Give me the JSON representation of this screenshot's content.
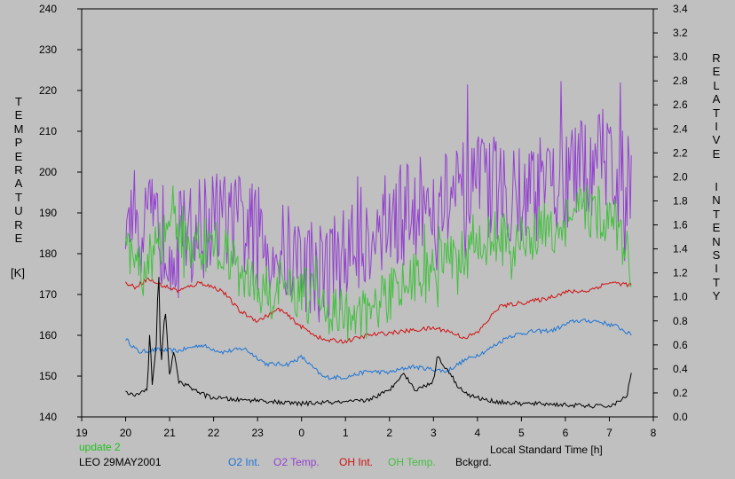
{
  "chart_data": {
    "type": "line",
    "xlabel": "Local Standard Time [h]",
    "x_tick_labels": [
      "19",
      "20",
      "21",
      "22",
      "23",
      "0",
      "1",
      "2",
      "3",
      "4",
      "5",
      "6",
      "7",
      "8"
    ],
    "xlim": [
      19,
      32
    ],
    "left_axis": {
      "label_letters": [
        "T",
        "E",
        "M",
        "P",
        "E",
        "R",
        "A",
        "T",
        "U",
        "R",
        "E"
      ],
      "unit": "[K]",
      "ylim": [
        140,
        240
      ],
      "tick_labels": [
        "140",
        "150",
        "160",
        "170",
        "180",
        "190",
        "200",
        "210",
        "220",
        "230",
        "240"
      ]
    },
    "right_axis": {
      "label_word1": [
        "R",
        "E",
        "L",
        "A",
        "T",
        "I",
        "V",
        "E"
      ],
      "label_word2": [
        "I",
        "N",
        "T",
        "E",
        "N",
        "S",
        "I",
        "T",
        "Y"
      ],
      "ylim": [
        0.0,
        3.4
      ],
      "tick_labels": [
        "0.0",
        "0.2",
        "0.4",
        "0.6",
        "0.8",
        "1.0",
        "1.2",
        "1.4",
        "1.6",
        "1.8",
        "2.0",
        "2.2",
        "2.4",
        "2.6",
        "2.8",
        "3.0",
        "3.2",
        "3.4"
      ]
    },
    "series": [
      {
        "name": "O2 Int.",
        "axis": "right",
        "color": "#1c74d6",
        "x": [
          20.0,
          20.3,
          20.7,
          21.2,
          21.7,
          22.2,
          22.7,
          23.2,
          23.7,
          24.0,
          24.5,
          25.0,
          25.5,
          26.0,
          26.5,
          26.9,
          27.3,
          27.7,
          28.2,
          28.7,
          29.2,
          29.7,
          30.2,
          30.7,
          31.2,
          31.5
        ],
        "y": [
          0.65,
          0.54,
          0.56,
          0.55,
          0.6,
          0.54,
          0.57,
          0.44,
          0.44,
          0.5,
          0.33,
          0.33,
          0.38,
          0.37,
          0.42,
          0.4,
          0.38,
          0.47,
          0.55,
          0.67,
          0.71,
          0.72,
          0.8,
          0.8,
          0.75,
          0.68
        ]
      },
      {
        "name": "O2 Temp.",
        "axis": "left",
        "color": "#9440d0",
        "x": [
          20.0,
          20.4,
          20.8,
          21.2,
          21.6,
          22.0,
          22.4,
          22.8,
          23.2,
          23.6,
          24.0,
          24.4,
          24.8,
          25.2,
          25.6,
          26.0,
          26.4,
          26.8,
          27.2,
          27.6,
          28.0,
          28.4,
          28.8,
          29.2,
          29.6,
          30.0,
          30.4,
          30.8,
          31.2,
          31.5
        ],
        "y": [
          190,
          187,
          185,
          183,
          186,
          188,
          188,
          186,
          182,
          180,
          178,
          176,
          178,
          182,
          186,
          188,
          190,
          192,
          193,
          194,
          196,
          196,
          196,
          195,
          196,
          198,
          200,
          204,
          203,
          198
        ],
        "noise": 13
      },
      {
        "name": "OH Int.",
        "axis": "right",
        "color": "#d01010",
        "x": [
          20.0,
          20.2,
          20.5,
          20.8,
          21.2,
          21.7,
          22.2,
          22.6,
          23.0,
          23.5,
          24.0,
          24.5,
          25.0,
          25.5,
          26.0,
          26.5,
          27.0,
          27.3,
          27.7,
          28.0,
          28.5,
          29.0,
          29.5,
          30.0,
          30.5,
          31.0,
          31.5
        ],
        "y": [
          1.12,
          1.08,
          1.15,
          1.1,
          1.05,
          1.12,
          1.05,
          0.88,
          0.8,
          0.9,
          0.75,
          0.64,
          0.63,
          0.68,
          0.7,
          0.72,
          0.74,
          0.72,
          0.66,
          0.7,
          0.92,
          0.95,
          0.98,
          1.04,
          1.05,
          1.12,
          1.1
        ]
      },
      {
        "name": "OH Temp.",
        "axis": "left",
        "color": "#44c040",
        "x": [
          20.0,
          20.4,
          20.8,
          21.2,
          21.6,
          22.0,
          22.4,
          22.8,
          23.2,
          23.6,
          24.0,
          24.4,
          24.8,
          25.2,
          25.6,
          26.0,
          26.4,
          26.8,
          27.2,
          27.6,
          28.0,
          28.4,
          28.8,
          29.2,
          29.6,
          30.0,
          30.4,
          30.8,
          31.2,
          31.5
        ],
        "y": [
          180,
          176,
          182,
          186,
          182,
          182,
          178,
          174,
          170,
          172,
          170,
          168,
          166,
          164,
          166,
          170,
          173,
          176,
          178,
          180,
          182,
          184,
          182,
          185,
          186,
          188,
          190,
          190,
          186,
          178
        ],
        "noise": 7
      },
      {
        "name": "Bckgrd.",
        "axis": "right",
        "color": "#000000",
        "x": [
          20.0,
          20.2,
          20.4,
          20.5,
          20.55,
          20.6,
          20.7,
          20.75,
          20.8,
          20.9,
          21.0,
          21.1,
          21.2,
          21.4,
          21.6,
          21.8,
          22.0,
          22.3,
          22.6,
          23.0,
          23.5,
          24.0,
          24.5,
          25.0,
          25.5,
          26.0,
          26.3,
          26.6,
          27.0,
          27.1,
          27.2,
          27.4,
          27.5,
          27.8,
          28.2,
          28.6,
          29.0,
          29.5,
          30.0,
          30.5,
          31.0,
          31.2,
          31.4,
          31.5
        ],
        "y": [
          0.2,
          0.18,
          0.22,
          0.24,
          0.75,
          0.25,
          0.6,
          1.3,
          0.4,
          0.9,
          0.35,
          0.55,
          0.3,
          0.26,
          0.22,
          0.18,
          0.16,
          0.15,
          0.14,
          0.14,
          0.12,
          0.11,
          0.12,
          0.12,
          0.14,
          0.22,
          0.37,
          0.22,
          0.3,
          0.52,
          0.44,
          0.36,
          0.28,
          0.18,
          0.14,
          0.12,
          0.11,
          0.11,
          0.1,
          0.09,
          0.09,
          0.12,
          0.18,
          0.36
        ]
      }
    ]
  },
  "footer": {
    "update": "update 2",
    "station": "LEO 29MAY2001",
    "update_color": "#22c022"
  }
}
